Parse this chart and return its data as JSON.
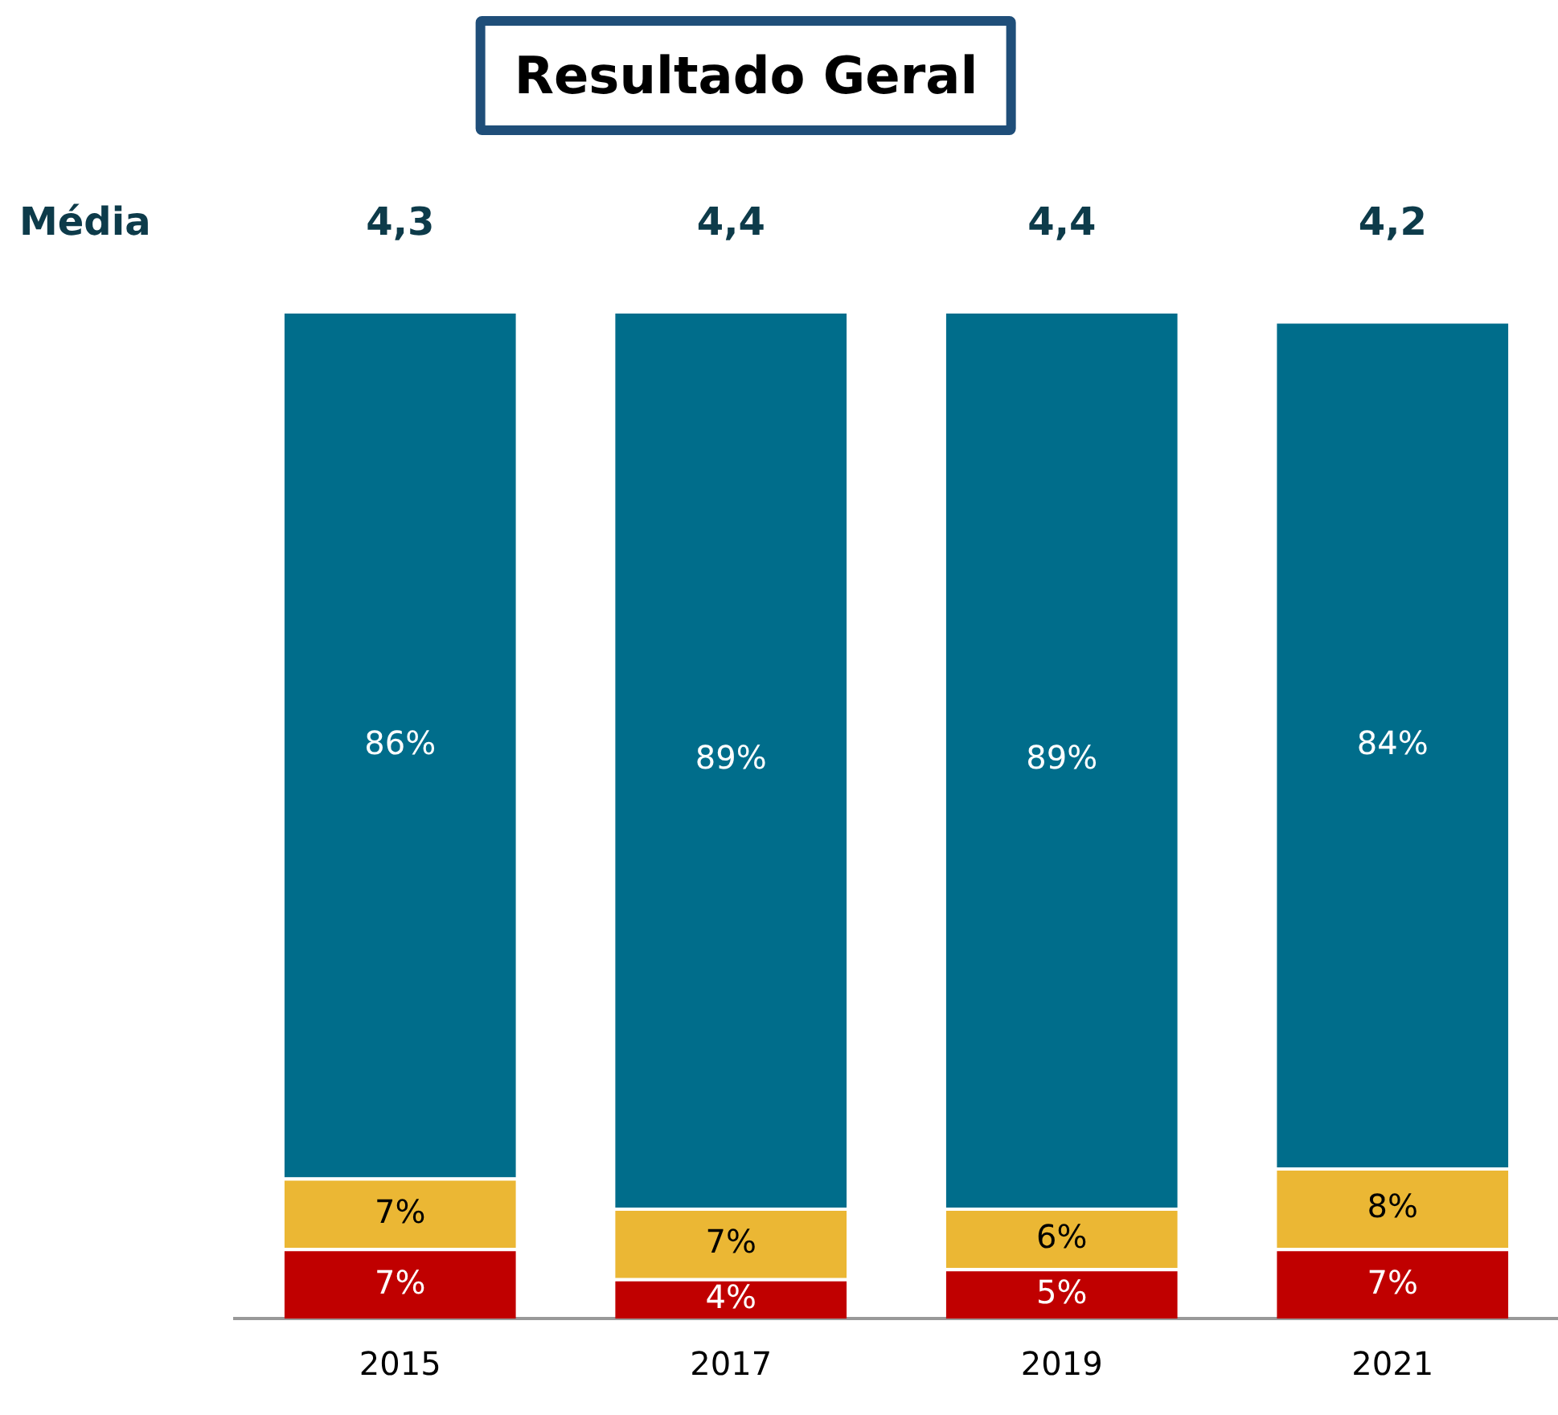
{
  "chart_data": {
    "type": "bar",
    "title": "Resultado Geral",
    "stacked": true,
    "grid": false,
    "legend": false,
    "tick_labels": "x",
    "categories": [
      "2015",
      "2017",
      "2019",
      "2021"
    ],
    "series": [
      {
        "color": "#c00000",
        "values": [
          7,
          4,
          5,
          7
        ],
        "value_labels": [
          "7%",
          "4%",
          "5%",
          "7%"
        ]
      },
      {
        "color": "#ebb734",
        "values": [
          7,
          7,
          6,
          8
        ],
        "value_labels": [
          "7%",
          "7%",
          "6%",
          "8%"
        ]
      },
      {
        "color": "#006d8b",
        "values": [
          86,
          89,
          89,
          84
        ],
        "value_labels": [
          "86%",
          "89%",
          "89%",
          "84%"
        ]
      }
    ],
    "annotations": [
      "Média",
      "4,3",
      "4,4",
      "4,4",
      "4,2"
    ]
  }
}
